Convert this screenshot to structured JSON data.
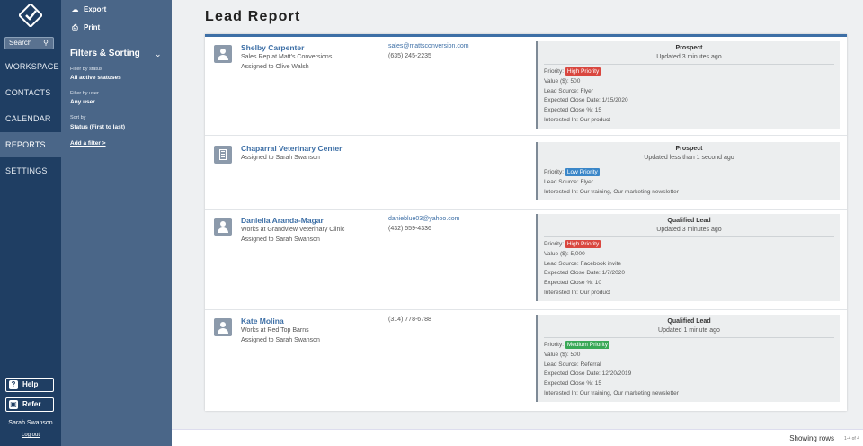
{
  "nav": {
    "search_label": "Search",
    "items": [
      "WORKSPACE",
      "CONTACTS",
      "CALENDAR",
      "REPORTS",
      "SETTINGS"
    ],
    "active": "REPORTS",
    "help_label": "Help",
    "refer_label": "Refer",
    "user_name": "Sarah Swanson",
    "logout_label": "Log out"
  },
  "panel": {
    "export_label": "Export",
    "print_label": "Print",
    "filters_title": "Filters & Sorting",
    "filters": [
      {
        "label": "Filter by status",
        "value": "All active statuses"
      },
      {
        "label": "Filter by user",
        "value": "Any user"
      },
      {
        "label": "Sort by",
        "value": "Status (First to last)"
      }
    ],
    "add_filter_label": "Add a filter >"
  },
  "page_title": "Lead Report",
  "leads": [
    {
      "type": "person",
      "name": "Shelby Carpenter",
      "subtitle": "Sales Rep at Matt's Conversions",
      "assigned": "Assigned to Olive Walsh",
      "email": "sales@mattsconversion.com",
      "phone": "(635) 245-2235",
      "status": "Prospect",
      "updated": "Updated 3 minutes ago",
      "priority_prefix": "Priority:",
      "priority": "High Priority",
      "priority_level": "high",
      "details": [
        "Value ($): 500",
        "Lead Source:  Flyer",
        "Expected Close Date: 1/15/2020",
        "Expected Close %: 15",
        "Interested In: Our product"
      ]
    },
    {
      "type": "company",
      "name": "Chaparral Veterinary Center",
      "assigned": "Assigned to Sarah Swanson",
      "status": "Prospect",
      "updated": "Updated less than 1 second ago",
      "priority_prefix": "Priority:",
      "priority": "Low Priority",
      "priority_level": "low",
      "details": [
        "Lead Source:  Flyer",
        "Interested In: Our training, Our marketing newsletter"
      ]
    },
    {
      "type": "person",
      "name": "Daniella Aranda-Magar",
      "subtitle": "Works at Grandview Veterinary Clinic",
      "assigned": "Assigned to Sarah Swanson",
      "email": "danieblue03@yahoo.com",
      "phone": "(432) 559-4336",
      "status": "Qualified Lead",
      "updated": "Updated 3 minutes ago",
      "priority_prefix": "Priority:",
      "priority": "High Priority",
      "priority_level": "high",
      "details": [
        "Value ($): 5,000",
        "Lead Source:  Facebook invite",
        "Expected Close Date: 1/7/2020",
        "Expected Close %: 10",
        "Interested In: Our product"
      ]
    },
    {
      "type": "person",
      "name": "Kate Molina",
      "subtitle": "Works at Red Top Barns",
      "assigned": "Assigned to Sarah Swanson",
      "phone": "(314) 778-6788",
      "status": "Qualified Lead",
      "updated": "Updated 1 minute ago",
      "priority_prefix": "Priority:",
      "priority": "Medium Priority",
      "priority_level": "medium",
      "details": [
        "Value ($): 500",
        "Lead Source:  Referral",
        "Expected Close Date: 12/20/2019",
        "Expected Close %: 15",
        "Interested In: Our training, Our marketing newsletter"
      ]
    }
  ],
  "footer": {
    "showing_label": "Showing rows",
    "count": "1-4 of 4"
  }
}
